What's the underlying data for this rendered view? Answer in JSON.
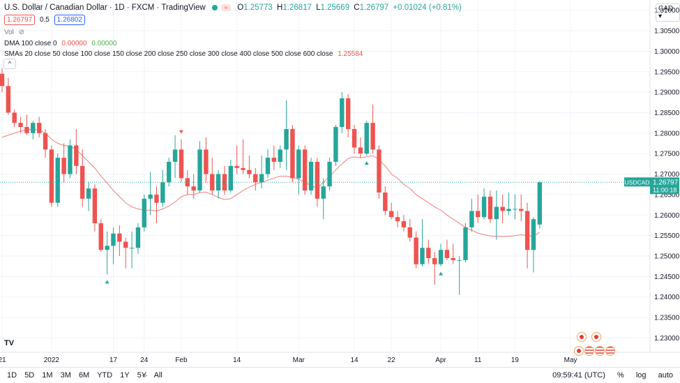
{
  "header": {
    "symbol_title": "U.S. Dollar / Canadian Dollar · 1D · FXCM · TradingView",
    "open_label": "O",
    "open": "1.25773",
    "high_label": "H",
    "high": "1.26817",
    "low_label": "L",
    "low": "1.25669",
    "close_label": "C",
    "close": "1.26797",
    "change": "+0.01024 (+0.81%)",
    "wave_icon": "≈"
  },
  "price_boxes": {
    "bid": "1.26797",
    "spread": "0.5",
    "ask": "1.26802"
  },
  "indicators": {
    "vol": "Vol",
    "dma_name": "DMA 100 close 0",
    "dma_v1": "0.00000",
    "dma_v2": "0.00000",
    "smas_name": "SMAs 20 close 50 close 100 close 150 close 200 close 250 close 300 close 400 close 500 close 600 close",
    "smas_value": "1.25584"
  },
  "currency_button": "CAD",
  "collapse_icon": "^",
  "last_price_label": {
    "symbol": "USDCAD",
    "price": "1.26797",
    "countdown": "11:00:18"
  },
  "bottom_bar": {
    "ranges": [
      "1D",
      "5D",
      "1M",
      "3M",
      "6M",
      "YTD",
      "1Y",
      "5Y",
      "All"
    ],
    "time": "09:59:41 (UTC)",
    "percent": "%",
    "log": "log",
    "auto": "auto"
  },
  "colors": {
    "up": "#26a69a",
    "down": "#ef5350",
    "sma": "#ef5350",
    "grid": "#f0f3fa"
  },
  "chart_data": {
    "type": "candlestick",
    "y_ticks": [
      "1.31000",
      "1.30500",
      "1.30000",
      "1.29500",
      "1.29000",
      "1.28500",
      "1.28000",
      "1.27500",
      "1.27000",
      "1.26500",
      "1.26000",
      "1.25500",
      "1.25000",
      "1.24500",
      "1.24000",
      "1.23500",
      "1.23000"
    ],
    "ylim": [
      1.2265,
      1.3125
    ],
    "x_ticks": [
      {
        "label": "21",
        "i": 0
      },
      {
        "label": "2022",
        "i": 8
      },
      {
        "label": "17",
        "i": 18
      },
      {
        "label": "24",
        "i": 23
      },
      {
        "label": "Feb",
        "i": 29
      },
      {
        "label": "14",
        "i": 38
      },
      {
        "label": "Mar",
        "i": 48
      },
      {
        "label": "14",
        "i": 57
      },
      {
        "label": "22",
        "i": 63
      },
      {
        "label": "Apr",
        "i": 71
      },
      {
        "label": "11",
        "i": 77
      },
      {
        "label": "19",
        "i": 83
      },
      {
        "label": "May",
        "i": 92
      }
    ],
    "candles": [
      {
        "o": 1.2945,
        "h": 1.2958,
        "l": 1.29,
        "c": 1.2915
      },
      {
        "o": 1.2915,
        "h": 1.2935,
        "l": 1.2845,
        "c": 1.285
      },
      {
        "o": 1.285,
        "h": 1.2858,
        "l": 1.2815,
        "c": 1.2825
      },
      {
        "o": 1.2825,
        "h": 1.284,
        "l": 1.28,
        "c": 1.2815
      },
      {
        "o": 1.2815,
        "h": 1.2845,
        "l": 1.2795,
        "c": 1.28
      },
      {
        "o": 1.28,
        "h": 1.283,
        "l": 1.2785,
        "c": 1.2825
      },
      {
        "o": 1.2825,
        "h": 1.284,
        "l": 1.279,
        "c": 1.28
      },
      {
        "o": 1.28,
        "h": 1.281,
        "l": 1.274,
        "c": 1.276
      },
      {
        "o": 1.276,
        "h": 1.277,
        "l": 1.262,
        "c": 1.263
      },
      {
        "o": 1.263,
        "h": 1.275,
        "l": 1.262,
        "c": 1.274
      },
      {
        "o": 1.274,
        "h": 1.2775,
        "l": 1.268,
        "c": 1.27
      },
      {
        "o": 1.27,
        "h": 1.2785,
        "l": 1.269,
        "c": 1.277
      },
      {
        "o": 1.277,
        "h": 1.281,
        "l": 1.27,
        "c": 1.272
      },
      {
        "o": 1.272,
        "h": 1.276,
        "l": 1.262,
        "c": 1.264
      },
      {
        "o": 1.264,
        "h": 1.268,
        "l": 1.261,
        "c": 1.2665
      },
      {
        "o": 1.2665,
        "h": 1.2675,
        "l": 1.256,
        "c": 1.258
      },
      {
        "o": 1.258,
        "h": 1.259,
        "l": 1.251,
        "c": 1.2515
      },
      {
        "o": 1.2515,
        "h": 1.256,
        "l": 1.2455,
        "c": 1.2525
      },
      {
        "o": 1.2525,
        "h": 1.257,
        "l": 1.248,
        "c": 1.2555
      },
      {
        "o": 1.2555,
        "h": 1.2575,
        "l": 1.25,
        "c": 1.2535
      },
      {
        "o": 1.2535,
        "h": 1.2545,
        "l": 1.247,
        "c": 1.252
      },
      {
        "o": 1.252,
        "h": 1.256,
        "l": 1.247,
        "c": 1.252
      },
      {
        "o": 1.252,
        "h": 1.258,
        "l": 1.2505,
        "c": 1.257
      },
      {
        "o": 1.257,
        "h": 1.265,
        "l": 1.256,
        "c": 1.264
      },
      {
        "o": 1.264,
        "h": 1.2705,
        "l": 1.26,
        "c": 1.265
      },
      {
        "o": 1.265,
        "h": 1.267,
        "l": 1.258,
        "c": 1.263
      },
      {
        "o": 1.263,
        "h": 1.271,
        "l": 1.262,
        "c": 1.268
      },
      {
        "o": 1.268,
        "h": 1.274,
        "l": 1.267,
        "c": 1.273
      },
      {
        "o": 1.273,
        "h": 1.2795,
        "l": 1.269,
        "c": 1.276
      },
      {
        "o": 1.276,
        "h": 1.2785,
        "l": 1.268,
        "c": 1.269
      },
      {
        "o": 1.269,
        "h": 1.271,
        "l": 1.265,
        "c": 1.267
      },
      {
        "o": 1.267,
        "h": 1.27,
        "l": 1.264,
        "c": 1.266
      },
      {
        "o": 1.266,
        "h": 1.278,
        "l": 1.2655,
        "c": 1.276
      },
      {
        "o": 1.276,
        "h": 1.279,
        "l": 1.268,
        "c": 1.27
      },
      {
        "o": 1.27,
        "h": 1.274,
        "l": 1.265,
        "c": 1.266
      },
      {
        "o": 1.266,
        "h": 1.271,
        "l": 1.264,
        "c": 1.27
      },
      {
        "o": 1.27,
        "h": 1.272,
        "l": 1.265,
        "c": 1.266
      },
      {
        "o": 1.266,
        "h": 1.2735,
        "l": 1.2655,
        "c": 1.272
      },
      {
        "o": 1.272,
        "h": 1.277,
        "l": 1.27,
        "c": 1.2715
      },
      {
        "o": 1.2715,
        "h": 1.2785,
        "l": 1.27,
        "c": 1.271
      },
      {
        "o": 1.271,
        "h": 1.2745,
        "l": 1.269,
        "c": 1.27
      },
      {
        "o": 1.27,
        "h": 1.2715,
        "l": 1.266,
        "c": 1.268
      },
      {
        "o": 1.268,
        "h": 1.2745,
        "l": 1.2665,
        "c": 1.27
      },
      {
        "o": 1.27,
        "h": 1.276,
        "l": 1.269,
        "c": 1.274
      },
      {
        "o": 1.274,
        "h": 1.277,
        "l": 1.271,
        "c": 1.273
      },
      {
        "o": 1.273,
        "h": 1.277,
        "l": 1.2715,
        "c": 1.276
      },
      {
        "o": 1.276,
        "h": 1.288,
        "l": 1.271,
        "c": 1.281
      },
      {
        "o": 1.281,
        "h": 1.282,
        "l": 1.268,
        "c": 1.269
      },
      {
        "o": 1.269,
        "h": 1.277,
        "l": 1.265,
        "c": 1.276
      },
      {
        "o": 1.276,
        "h": 1.277,
        "l": 1.265,
        "c": 1.266
      },
      {
        "o": 1.266,
        "h": 1.274,
        "l": 1.265,
        "c": 1.273
      },
      {
        "o": 1.273,
        "h": 1.274,
        "l": 1.262,
        "c": 1.264
      },
      {
        "o": 1.264,
        "h": 1.269,
        "l": 1.259,
        "c": 1.267
      },
      {
        "o": 1.267,
        "h": 1.274,
        "l": 1.266,
        "c": 1.273
      },
      {
        "o": 1.273,
        "h": 1.282,
        "l": 1.272,
        "c": 1.2815
      },
      {
        "o": 1.2815,
        "h": 1.29,
        "l": 1.28,
        "c": 1.2885
      },
      {
        "o": 1.2885,
        "h": 1.2895,
        "l": 1.279,
        "c": 1.281
      },
      {
        "o": 1.281,
        "h": 1.282,
        "l": 1.275,
        "c": 1.2765
      },
      {
        "o": 1.2765,
        "h": 1.279,
        "l": 1.274,
        "c": 1.275
      },
      {
        "o": 1.275,
        "h": 1.283,
        "l": 1.2745,
        "c": 1.2825
      },
      {
        "o": 1.2825,
        "h": 1.287,
        "l": 1.275,
        "c": 1.276
      },
      {
        "o": 1.276,
        "h": 1.277,
        "l": 1.264,
        "c": 1.2655
      },
      {
        "o": 1.2655,
        "h": 1.267,
        "l": 1.26,
        "c": 1.261
      },
      {
        "o": 1.261,
        "h": 1.263,
        "l": 1.259,
        "c": 1.2595
      },
      {
        "o": 1.2595,
        "h": 1.261,
        "l": 1.257,
        "c": 1.2585
      },
      {
        "o": 1.2585,
        "h": 1.26,
        "l": 1.256,
        "c": 1.257
      },
      {
        "o": 1.257,
        "h": 1.259,
        "l": 1.2535,
        "c": 1.2545
      },
      {
        "o": 1.2545,
        "h": 1.256,
        "l": 1.247,
        "c": 1.248
      },
      {
        "o": 1.248,
        "h": 1.259,
        "l": 1.2475,
        "c": 1.252
      },
      {
        "o": 1.252,
        "h": 1.254,
        "l": 1.248,
        "c": 1.2495
      },
      {
        "o": 1.2495,
        "h": 1.251,
        "l": 1.243,
        "c": 1.248
      },
      {
        "o": 1.248,
        "h": 1.253,
        "l": 1.2475,
        "c": 1.2515
      },
      {
        "o": 1.2515,
        "h": 1.254,
        "l": 1.249,
        "c": 1.2495
      },
      {
        "o": 1.2495,
        "h": 1.253,
        "l": 1.248,
        "c": 1.249
      },
      {
        "o": 1.249,
        "h": 1.25,
        "l": 1.2405,
        "c": 1.249
      },
      {
        "o": 1.249,
        "h": 1.258,
        "l": 1.2485,
        "c": 1.257
      },
      {
        "o": 1.257,
        "h": 1.264,
        "l": 1.256,
        "c": 1.261
      },
      {
        "o": 1.261,
        "h": 1.265,
        "l": 1.258,
        "c": 1.2595
      },
      {
        "o": 1.2595,
        "h": 1.2665,
        "l": 1.259,
        "c": 1.2645
      },
      {
        "o": 1.2645,
        "h": 1.266,
        "l": 1.258,
        "c": 1.259
      },
      {
        "o": 1.259,
        "h": 1.266,
        "l": 1.254,
        "c": 1.262
      },
      {
        "o": 1.262,
        "h": 1.265,
        "l": 1.258,
        "c": 1.261
      },
      {
        "o": 1.261,
        "h": 1.2655,
        "l": 1.26,
        "c": 1.2615
      },
      {
        "o": 1.2615,
        "h": 1.265,
        "l": 1.259,
        "c": 1.2615
      },
      {
        "o": 1.2615,
        "h": 1.265,
        "l": 1.2585,
        "c": 1.261
      },
      {
        "o": 1.261,
        "h": 1.263,
        "l": 1.247,
        "c": 1.2515
      },
      {
        "o": 1.2515,
        "h": 1.2595,
        "l": 1.246,
        "c": 1.259
      },
      {
        "o": 1.2577,
        "h": 1.2682,
        "l": 1.2567,
        "c": 1.268
      }
    ],
    "sma": [
      1.279,
      1.2795,
      1.28,
      1.2805,
      1.2808,
      1.281,
      1.2808,
      1.28,
      1.2785,
      1.2775,
      1.277,
      1.2768,
      1.276,
      1.2745,
      1.273,
      1.2715,
      1.2695,
      1.2678,
      1.266,
      1.2645,
      1.263,
      1.262,
      1.2615,
      1.2612,
      1.2612,
      1.261,
      1.2615,
      1.2622,
      1.2632,
      1.2645,
      1.265,
      1.265,
      1.2655,
      1.2656,
      1.265,
      1.2643,
      1.2638,
      1.264,
      1.265,
      1.266,
      1.2668,
      1.2675,
      1.268,
      1.2685,
      1.269,
      1.2695,
      1.2695,
      1.2692,
      1.2688,
      1.268,
      1.2672,
      1.2665,
      1.268,
      1.2695,
      1.271,
      1.2725,
      1.2738,
      1.2742,
      1.274,
      1.2742,
      1.2745,
      1.2735,
      1.272,
      1.27,
      1.269,
      1.2675,
      1.2665,
      1.265,
      1.264,
      1.263,
      1.262,
      1.2612,
      1.26,
      1.259,
      1.258,
      1.257,
      1.2563,
      1.2556,
      1.2552,
      1.2549,
      1.2548,
      1.2548,
      1.2548,
      1.255,
      1.2552,
      1.255,
      1.2548,
      1.2558
    ],
    "markers": [
      {
        "i": 17,
        "type": "up"
      },
      {
        "i": 29,
        "type": "down"
      },
      {
        "i": 59,
        "type": "up"
      },
      {
        "i": 71,
        "type": "up"
      }
    ]
  }
}
